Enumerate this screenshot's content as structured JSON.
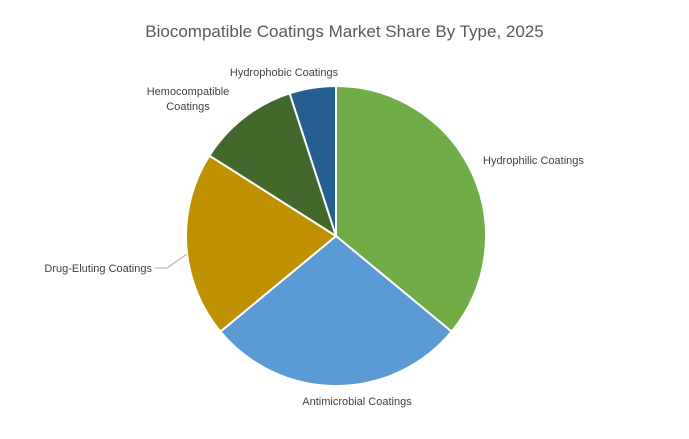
{
  "chart_data": {
    "type": "pie",
    "title": "Biocompatible Coatings Market Share By Type, 2025",
    "slices": [
      {
        "label": "Hydrophilic Coatings",
        "value": 36,
        "color": "#70AD47"
      },
      {
        "label": "Antimicrobial Coatings",
        "value": 28,
        "color": "#5B9BD5"
      },
      {
        "label": "Drug-Eluting Coatings",
        "value": 20,
        "color": "#BF9000"
      },
      {
        "label": "Hemocompatible Coatings",
        "value": 11,
        "color": "#43682B"
      },
      {
        "label": "Hydrophobic Coatings",
        "value": 5,
        "color": "#255E91"
      }
    ],
    "slice_border_color": "#FFFFFF",
    "leader_line_color": "#A6A6A6"
  }
}
